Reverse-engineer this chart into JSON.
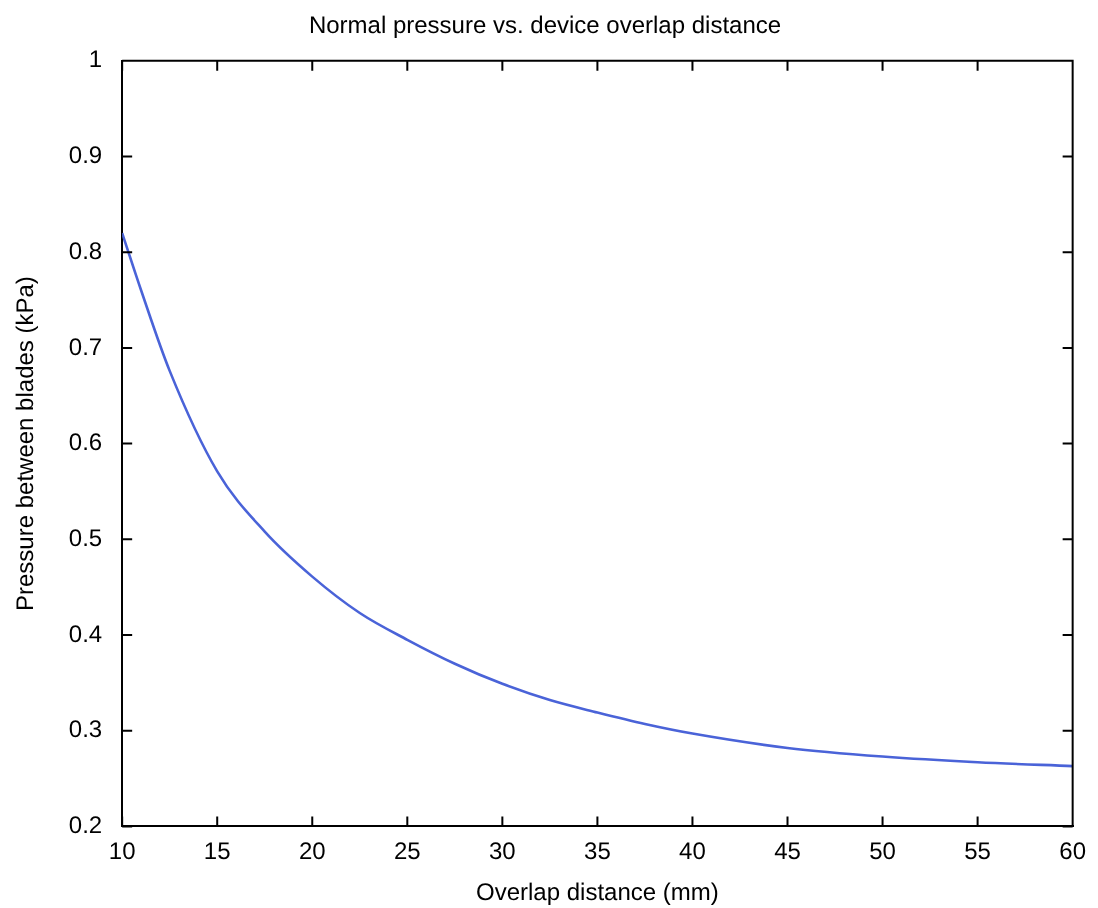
{
  "chart_data": {
    "type": "line",
    "title": "Normal pressure vs. device overlap distance",
    "xlabel": "Overlap distance (mm)",
    "ylabel": "Pressure between blades (kPa)",
    "x": [
      10,
      11,
      12.5,
      15,
      17.5,
      20,
      22.5,
      25,
      27.5,
      30,
      32.5,
      35,
      37.5,
      40,
      45,
      50,
      55,
      60
    ],
    "series": [
      {
        "color": "#4a63d8",
        "values": [
          0.82,
          0.76,
          0.676,
          0.571,
          0.508,
          0.461,
          0.423,
          0.395,
          0.37,
          0.349,
          0.332,
          0.319,
          0.307,
          0.297,
          0.282,
          0.273,
          0.267,
          0.263
        ]
      }
    ],
    "xlim": [
      10,
      60
    ],
    "xticks": [
      10,
      15,
      20,
      25,
      30,
      35,
      40,
      45,
      50,
      55,
      60
    ],
    "ylim": [
      0.2,
      1
    ],
    "yticks": [
      0.2,
      0.3,
      0.4,
      0.5,
      0.6,
      0.7,
      0.8,
      0.9,
      1
    ],
    "grid": false,
    "legend": false,
    "marker": "none",
    "line_style": "solid"
  }
}
